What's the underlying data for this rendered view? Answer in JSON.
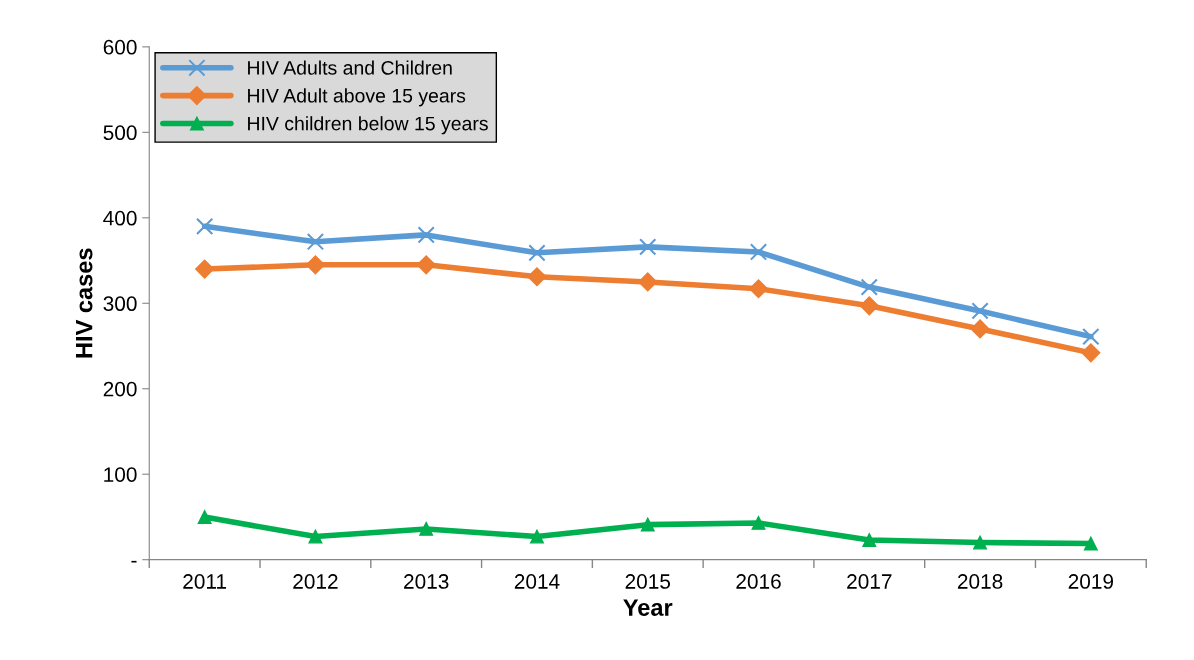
{
  "chart_data": {
    "type": "line",
    "xlabel": "Year",
    "ylabel": "HIV cases",
    "categories": [
      "2011",
      "2012",
      "2013",
      "2014",
      "2015",
      "2016",
      "2017",
      "2018",
      "2019"
    ],
    "series": [
      {
        "name": "HIV Adults and Children",
        "color": "#5b9bd5",
        "marker": "cross",
        "values": [
          390,
          372,
          380,
          359,
          366,
          360,
          319,
          291,
          261
        ]
      },
      {
        "name": "HIV Adult above 15 years",
        "color": "#ed7d31",
        "marker": "diamond",
        "values": [
          340,
          345,
          345,
          331,
          325,
          317,
          297,
          270,
          242
        ]
      },
      {
        "name": "HIV children below 15 years",
        "color": "#00b050",
        "marker": "triangle",
        "values": [
          50,
          27,
          36,
          27,
          41,
          43,
          23,
          20,
          19
        ]
      }
    ],
    "ylim": [
      0,
      600
    ],
    "yticks": [
      {
        "value": 0,
        "label": "-"
      },
      100,
      200,
      300,
      400,
      500,
      600
    ],
    "grid": false,
    "legend": "top left",
    "line_style": "solid"
  }
}
